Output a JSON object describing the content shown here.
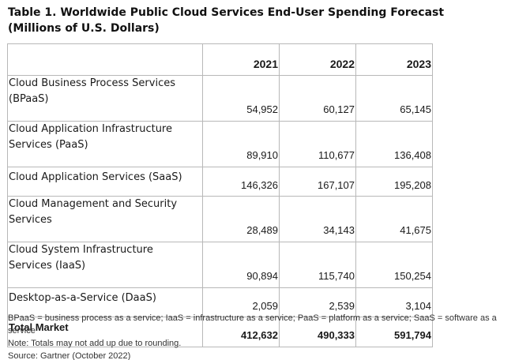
{
  "title": "Table 1. Worldwide Public Cloud Services End-User Spending Forecast (Millions of U.S. Dollars)",
  "columns": [
    "2021",
    "2022",
    "2023"
  ],
  "rows": [
    {
      "label_line1": "Cloud Business Process Services",
      "label_line2": "(BPaaS)",
      "values": [
        "54,952",
        "60,127",
        "65,145"
      ]
    },
    {
      "label_line1": "Cloud Application Infrastructure",
      "label_line2": "Services (PaaS)",
      "values": [
        "89,910",
        "110,677",
        "136,408"
      ]
    },
    {
      "label_line1": "Cloud Application Services (SaaS)",
      "label_line2": "",
      "values": [
        "146,326",
        "167,107",
        "195,208"
      ]
    },
    {
      "label_line1": "Cloud Management and Security",
      "label_line2": "Services",
      "values": [
        "28,489",
        "34,143",
        "41,675"
      ]
    },
    {
      "label_line1": "Cloud System Infrastructure",
      "label_line2": "Services (IaaS)",
      "values": [
        "90,894",
        "115,740",
        "150,254"
      ]
    },
    {
      "label_line1": "Desktop-as-a-Service (DaaS)",
      "label_line2": "",
      "values": [
        "2,059",
        "2,539",
        "3,104"
      ]
    }
  ],
  "total": {
    "label": "Total Market",
    "values": [
      "412,632",
      "490,333",
      "591,794"
    ]
  },
  "notes": {
    "abbreviations": "BPaaS = business process as a service; IaaS = infrastructure as a service; PaaS = platform as a service; SaaS = software as a service",
    "rounding": "Note: Totals may not add up due to rounding.",
    "source": "Source: Gartner (October 2022)"
  }
}
